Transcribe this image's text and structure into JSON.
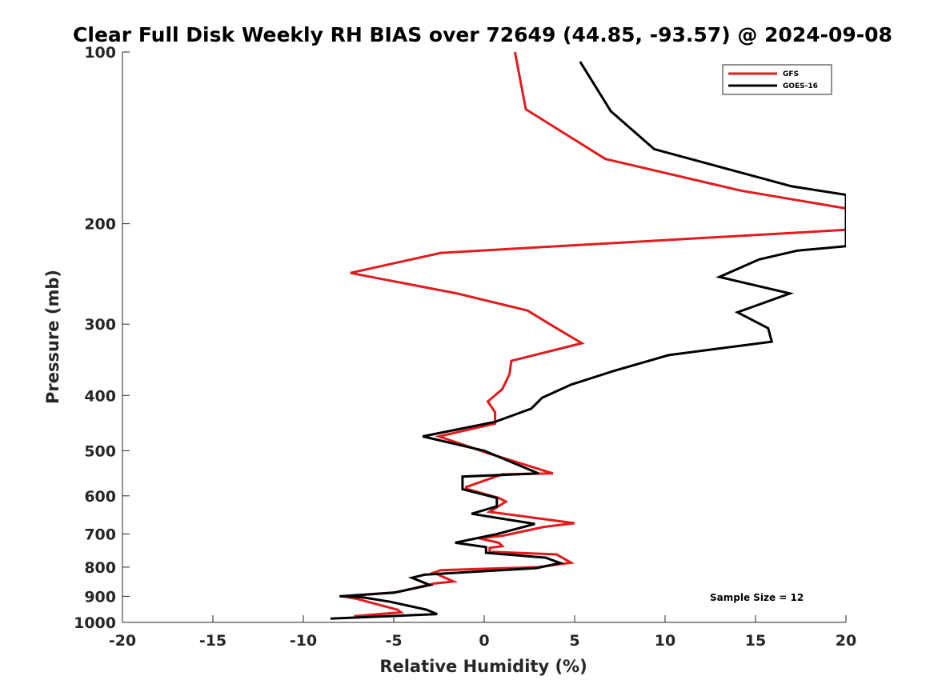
{
  "chart_data": {
    "type": "line",
    "title": "Clear Full Disk Weekly RH BIAS over 72649 (44.85, -93.57) @ 2024-09-08",
    "xlabel": "Relative Humidity (%)",
    "ylabel": "Pressure (mb)",
    "xlim": [
      -20,
      20
    ],
    "ylim": [
      100,
      1000
    ],
    "y_scale": "log",
    "y_reversed": true,
    "xticks": [
      -20,
      -15,
      -10,
      -5,
      0,
      5,
      10,
      15,
      20
    ],
    "xtick_labels": [
      "-20",
      "-15",
      "-10",
      "-5",
      "0",
      "5",
      "10",
      "15",
      "20"
    ],
    "yticks": [
      100,
      200,
      300,
      400,
      500,
      600,
      700,
      800,
      900,
      1000
    ],
    "ytick_labels": [
      "100",
      "200",
      "300",
      "400",
      "500",
      "600",
      "700",
      "800",
      "900",
      "1000"
    ],
    "grid": false,
    "legend_position": "top-right",
    "annotation": "Sample Size = 12",
    "series": [
      {
        "name": "GFS",
        "color": "#e31a1c",
        "x": [
          -7.2,
          -4.6,
          -4.8,
          -7.0,
          -7.8,
          -4.8,
          -2.8,
          -1.7,
          -2.8,
          -2.4,
          3.0,
          4.8,
          4.0,
          0.3,
          0.3,
          1.0,
          0.8,
          -0.3,
          1.0,
          3.3,
          5.0,
          0.3,
          1.2,
          0.8,
          -1.0,
          -1.0,
          1.0,
          3.8,
          0.2,
          -2.5,
          0.6,
          0.6,
          0.2,
          1.0,
          1.4,
          1.5,
          5.4,
          3.7,
          2.4,
          -1.5,
          -7.4,
          -2.4,
          20.0,
          20.0,
          14.2,
          6.7,
          2.3,
          1.7
        ],
        "y": [
          975,
          960,
          950,
          910,
          900,
          885,
          855,
          848,
          818,
          810,
          800,
          786,
          760,
          752,
          740,
          735,
          725,
          712,
          705,
          680,
          670,
          640,
          614,
          605,
          583,
          579,
          550,
          548,
          505,
          472,
          448,
          428,
          410,
          390,
          367,
          348,
          324,
          301,
          284,
          265,
          244,
          225,
          205,
          188,
          175,
          154,
          126,
          100
        ]
      },
      {
        "name": "GOES-16",
        "color": "#000000",
        "x": [
          -8.5,
          -2.6,
          -3.2,
          -5.2,
          -6.8,
          -8.0,
          -5.0,
          -3.0,
          -4.0,
          -3.3,
          2.9,
          4.2,
          3.4,
          0.1,
          0.1,
          -1.6,
          0.7,
          2.8,
          -0.7,
          0.7,
          0.7,
          -1.2,
          -1.2,
          3.0,
          0.0,
          -3.4,
          0.6,
          2.6,
          3.2,
          4.8,
          7.2,
          10.2,
          15.9,
          15.7,
          14.0,
          16.9,
          13.0,
          15.2,
          17.3,
          20.0,
          20.0,
          17.0,
          9.4,
          7.0,
          5.3
        ],
        "y": [
          985,
          967,
          950,
          920,
          903,
          900,
          887,
          860,
          835,
          825,
          803,
          787,
          770,
          755,
          738,
          725,
          700,
          672,
          645,
          626,
          605,
          584,
          555,
          548,
          500,
          472,
          445,
          422,
          404,
          383,
          362,
          340,
          322,
          305,
          286,
          265,
          248,
          231,
          223,
          219,
          178,
          172,
          148,
          127,
          104
        ]
      }
    ]
  }
}
